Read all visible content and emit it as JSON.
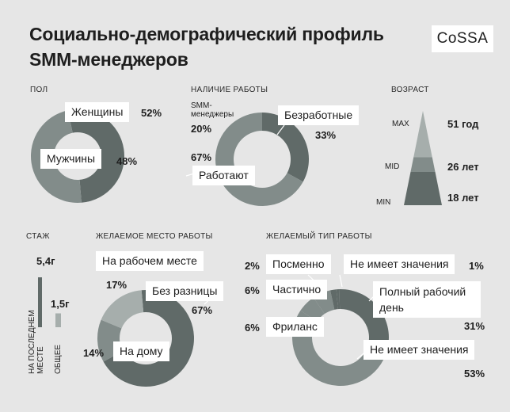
{
  "title_line1": "Социально-демографический профиль",
  "title_line2": "SMM-менеджеров",
  "logo": "CoSSA",
  "colors": {
    "bg": "#e6e6e6",
    "dark": "#606a68",
    "mid": "#828c8a",
    "light": "#a6aeac",
    "hole": "#e6e6e6"
  },
  "chart_data": [
    {
      "type": "pie",
      "title": "ПОЛ",
      "slices": [
        {
          "label": "Женщины",
          "value": 52,
          "value_text": "52%"
        },
        {
          "label": "Мужчины",
          "value": 48,
          "value_text": "48%"
        }
      ]
    },
    {
      "type": "pie",
      "title": "НАЛИЧИЕ РАБОТЫ",
      "note": "SMM-менеджеры",
      "slices": [
        {
          "label": "Безработные",
          "value": 33,
          "value_text": "33%"
        },
        {
          "label": "Работают",
          "value": 67,
          "value_text": "67%"
        }
      ],
      "note_value_text": "20%"
    },
    {
      "type": "bar",
      "title": "ВОЗРАСТ",
      "categories": [
        "MAX",
        "MID",
        "MIN"
      ],
      "values": [
        51,
        26,
        18
      ],
      "value_texts": [
        "51 год",
        "26 лет",
        "18 лет"
      ]
    },
    {
      "type": "bar",
      "title": "СТАЖ",
      "categories": [
        "НА ПОСЛЕДНЕМ МЕСТЕ",
        "ОБЩЕЕ"
      ],
      "values": [
        5.4,
        1.5
      ],
      "value_texts": [
        "5,4г",
        "1,5г"
      ]
    },
    {
      "type": "pie",
      "title": "ЖЕЛАЕМОЕ МЕСТО РАБОТЫ",
      "slices": [
        {
          "label": "Без разницы",
          "value": 67,
          "value_text": "67%"
        },
        {
          "label": "На дому",
          "value": 14,
          "value_text": "14%"
        },
        {
          "label": "На рабочем месте",
          "value": 17,
          "value_text": "17%"
        }
      ]
    },
    {
      "type": "pie",
      "title": "ЖЕЛАЕМЫЙ ТИП РАБОТЫ",
      "slices": [
        {
          "label": "Не имеет значения",
          "value": 1,
          "value_text": "1%"
        },
        {
          "label": "Полный рабочий день",
          "value": 31,
          "value_text": "31%"
        },
        {
          "label": "Не имеет значения",
          "value": 53,
          "value_text": "53%"
        },
        {
          "label": "Фриланс",
          "value": 6,
          "value_text": "6%"
        },
        {
          "label": "Частично",
          "value": 6,
          "value_text": "6%"
        },
        {
          "label": "Посменно",
          "value": 2,
          "value_text": "2%"
        }
      ]
    }
  ]
}
